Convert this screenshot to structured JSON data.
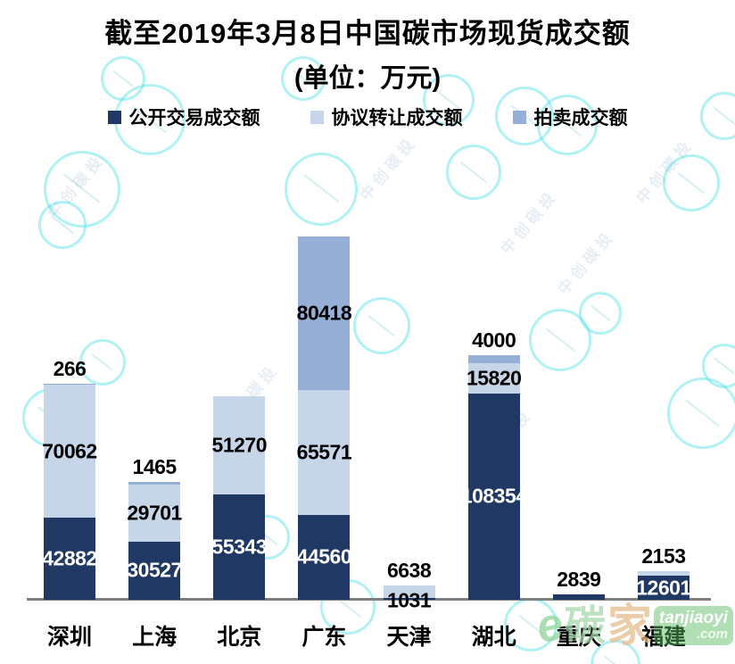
{
  "title": "截至2019年3月8日中国碳市场现货成交额",
  "subtitle": "(单位：万元)",
  "diagonal_watermark": "中创碳投",
  "site_watermark": {
    "e": "e",
    "tan": "碳",
    "jia": "家",
    "site": "tanjiaoyi",
    "tld": ".com"
  },
  "chart_data": {
    "type": "bar",
    "stacked": true,
    "title": "截至2019年3月8日中国碳市场现货成交额",
    "unit": "万元",
    "categories": [
      "深圳",
      "上海",
      "北京",
      "广东",
      "天津",
      "湖北",
      "重庆",
      "福建"
    ],
    "series": [
      {
        "name": "公开交易成交额",
        "color": "#1F3864",
        "label_color": "#FFFFFF",
        "values": [
          42882,
          30527,
          55343,
          44560,
          1031,
          108354,
          2839,
          12601
        ],
        "label_pos": [
          "in",
          "in",
          "in",
          "in",
          "base",
          "in",
          "above",
          "in"
        ]
      },
      {
        "name": "协议转让成交额",
        "color": "#C6D5E8",
        "label_color": "#000000",
        "values": [
          70062,
          29701,
          51270,
          65571,
          6638,
          15820,
          0,
          2153
        ],
        "label_pos": [
          "in",
          "in",
          "in",
          "in",
          "above",
          "in",
          "",
          "above"
        ]
      },
      {
        "name": "拍卖成交额",
        "color": "#95AFD7",
        "label_color": "#000000",
        "values": [
          266,
          1465,
          0,
          80418,
          0,
          4000,
          0,
          0
        ],
        "label_pos": [
          "above",
          "above",
          "",
          "in",
          "",
          "above",
          "",
          ""
        ]
      }
    ],
    "ylim": [
      0,
      200000
    ],
    "legend_position": "top",
    "grid": false,
    "y_axis_visible": false,
    "axis_line_color": "#7F7F7F"
  }
}
